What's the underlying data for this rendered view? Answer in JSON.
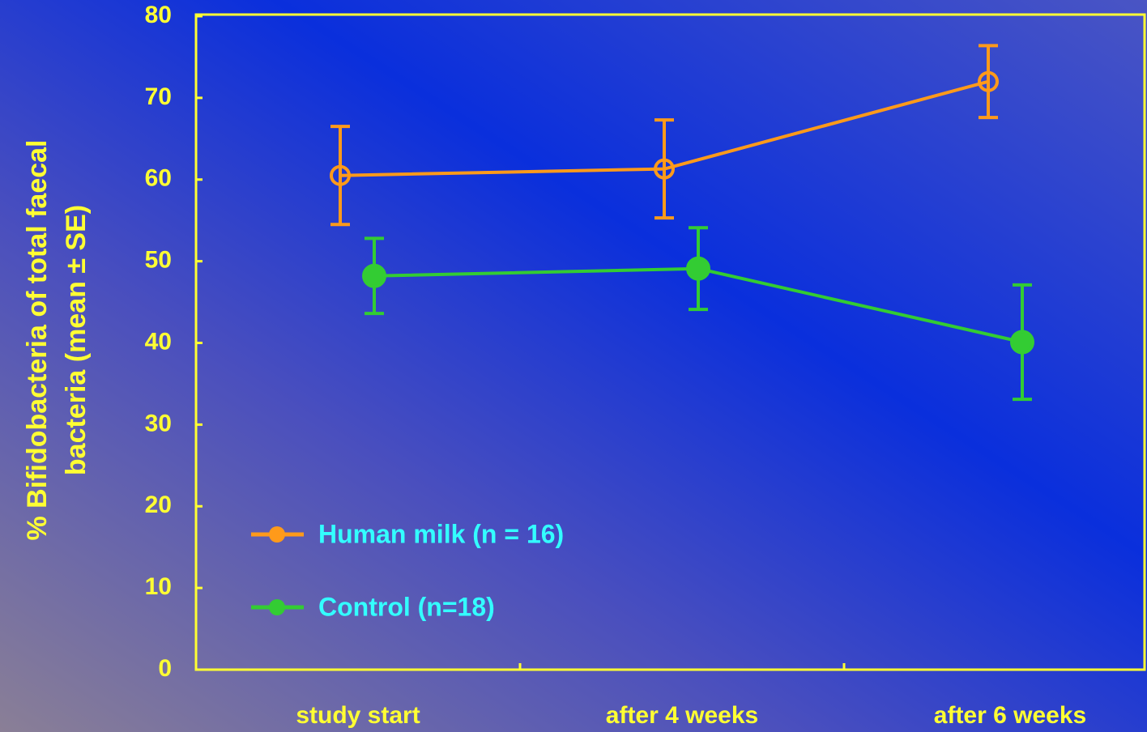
{
  "chart_data": {
    "type": "line",
    "ylabel": [
      "% Bifidobacteria of total faecal",
      "bacteria (mean ± SE)"
    ],
    "categories": [
      "study start",
      "after 4 weeks",
      "after 6 weeks"
    ],
    "ylim": [
      0,
      80
    ],
    "yticks": [
      0,
      10,
      20,
      30,
      40,
      50,
      60,
      70,
      80
    ],
    "series": [
      {
        "name": "Human milk (n = 16)",
        "color": "#ff9a1a",
        "marker": "open",
        "values": [
          60.5,
          61.3,
          72
        ],
        "errors": [
          6,
          6,
          4.4
        ]
      },
      {
        "name": "Control (n=18)",
        "color": "#33cc33",
        "marker": "filled",
        "values": [
          48.2,
          49.1,
          40.1
        ],
        "errors": [
          4.6,
          5,
          7
        ]
      }
    ]
  }
}
